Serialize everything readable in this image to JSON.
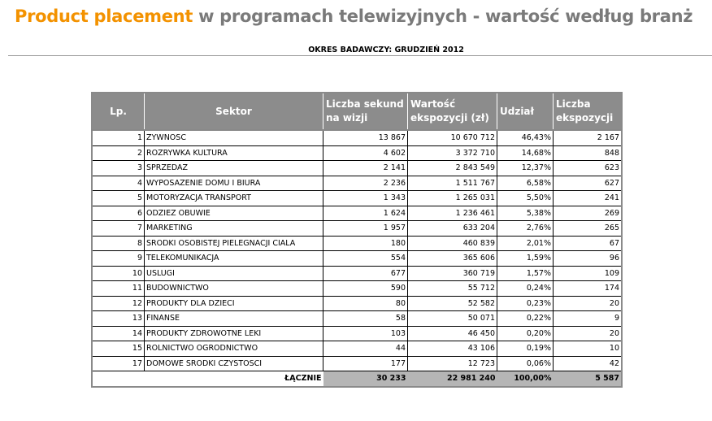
{
  "title": {
    "accent": "Product placement",
    "rest": " w programach telewizyjnych - wartość według branż"
  },
  "subtitle": "OKRES BADAWCZY: GRUDZIEŃ 2012",
  "headers": [
    "Lp.",
    "Sektor",
    "Liczba sekund na wizji",
    "Wartość ekspozycji (zł)",
    "Udział",
    "Liczba ekspozycji"
  ],
  "rows": [
    [
      "1",
      "ZYWNOSC",
      "13 867",
      "10 670 712",
      "46,43%",
      "2 167"
    ],
    [
      "2",
      "ROZRYWKA KULTURA",
      "4 602",
      "3 372 710",
      "14,68%",
      "848"
    ],
    [
      "3",
      "SPRZEDAZ",
      "2 141",
      "2 843 549",
      "12,37%",
      "623"
    ],
    [
      "4",
      "WYPOSAZENIE DOMU I BIURA",
      "2 236",
      "1 511 767",
      "6,58%",
      "627"
    ],
    [
      "5",
      "MOTORYZACJA TRANSPORT",
      "1 343",
      "1 265 031",
      "5,50%",
      "241"
    ],
    [
      "6",
      "ODZIEZ OBUWIE",
      "1 624",
      "1 236 461",
      "5,38%",
      "269"
    ],
    [
      "7",
      "MARKETING",
      "1 957",
      "633 204",
      "2,76%",
      "265"
    ],
    [
      "8",
      "SRODKI OSOBISTEJ PIELEGNACJI CIALA",
      "180",
      "460 839",
      "2,01%",
      "67"
    ],
    [
      "9",
      "TELEKOMUNIKACJA",
      "554",
      "365 606",
      "1,59%",
      "96"
    ],
    [
      "10",
      "USLUGI",
      "677",
      "360 719",
      "1,57%",
      "109"
    ],
    [
      "11",
      "BUDOWNICTWO",
      "590",
      "55 712",
      "0,24%",
      "174"
    ],
    [
      "12",
      "PRODUKTY DLA DZIECI",
      "80",
      "52 582",
      "0,23%",
      "20"
    ],
    [
      "13",
      "FINANSE",
      "58",
      "50 071",
      "0,22%",
      "9"
    ],
    [
      "14",
      "PRODUKTY ZDROWOTNE LEKI",
      "103",
      "46 450",
      "0,20%",
      "20"
    ],
    [
      "15",
      "ROLNICTWO OGRODNICTWO",
      "44",
      "43 106",
      "0,19%",
      "10"
    ],
    [
      "17",
      "DOMOWE SRODKI CZYSTOSCI",
      "177",
      "12 723",
      "0,06%",
      "42"
    ]
  ],
  "total": {
    "label": "ŁĄCZNIE",
    "values": [
      "30 233",
      "22 981 240",
      "100,00%",
      "5 587"
    ]
  }
}
